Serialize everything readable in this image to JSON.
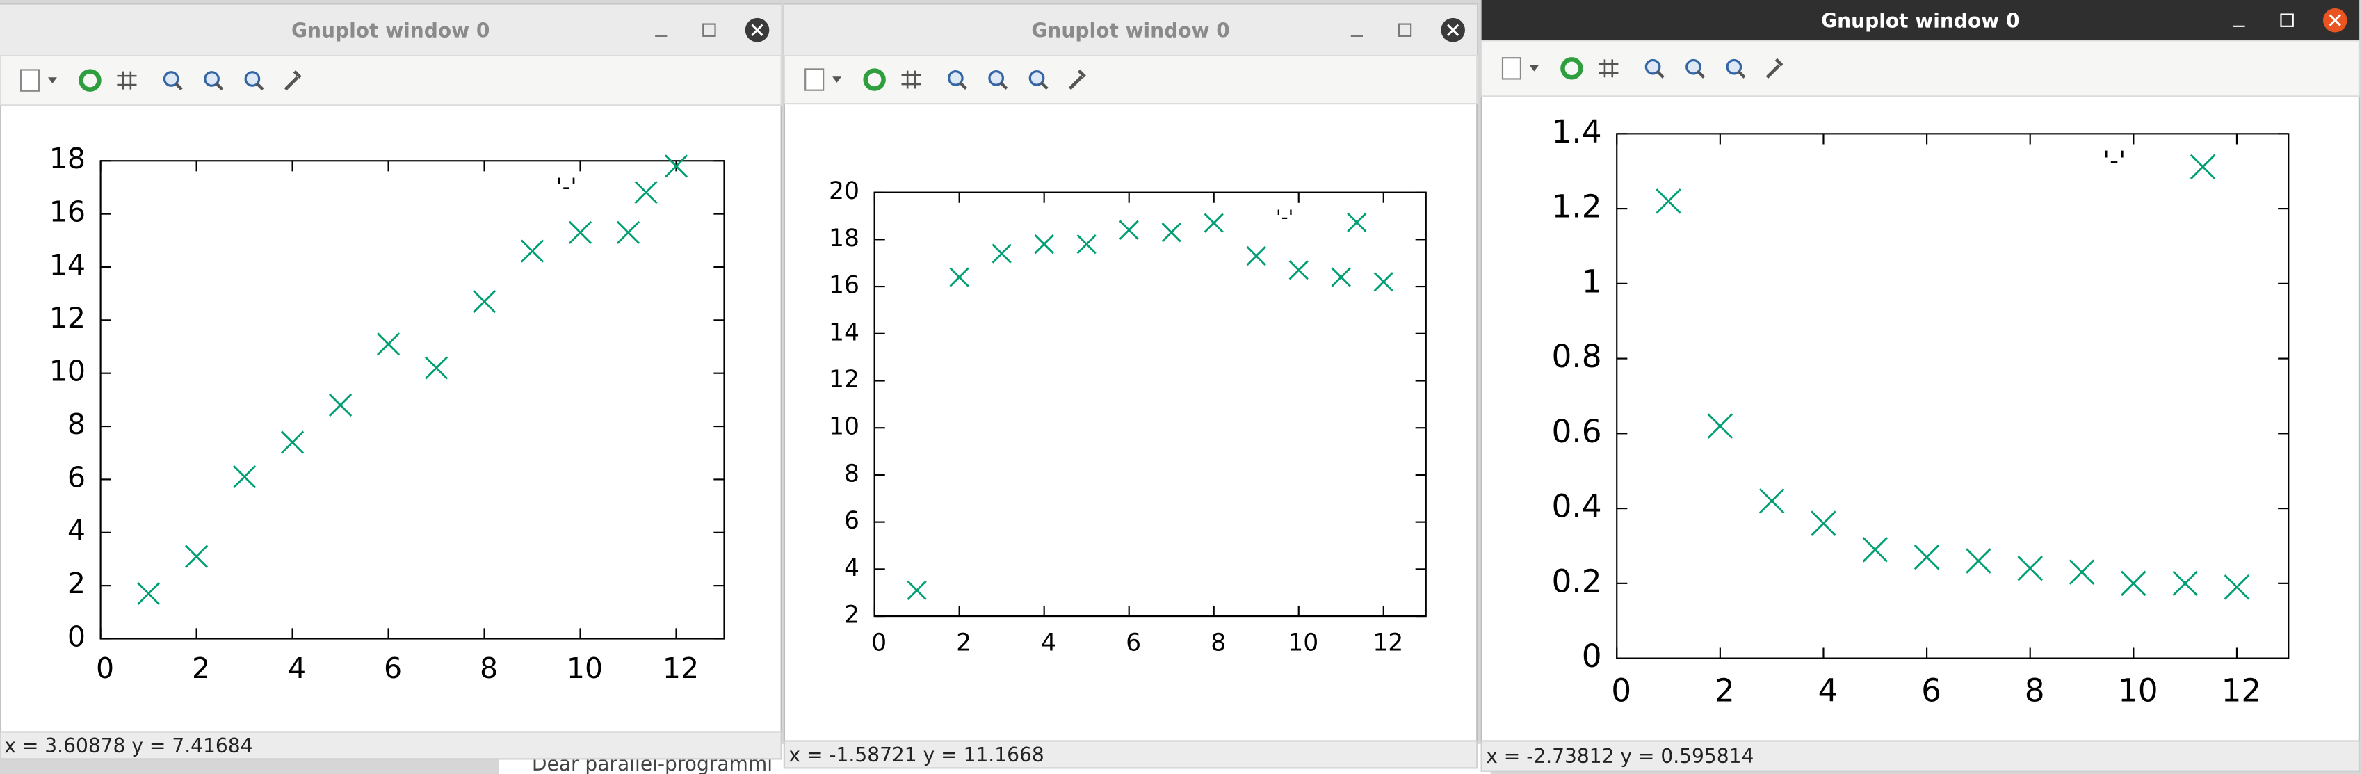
{
  "windows": [
    {
      "title": "Gnuplot window 0",
      "status": "x = 3.60878 y = 7.41684"
    },
    {
      "title": "Gnuplot window 0",
      "status": "x = -1.58721 y = 11.1668"
    },
    {
      "title": "Gnuplot window 0",
      "status": "x = -2.73812 y = 0.595814"
    }
  ],
  "background_text": "Dear parallel-programmi",
  "chart_data": [
    {
      "type": "scatter",
      "x": [
        1,
        2,
        3,
        4,
        5,
        6,
        7,
        8,
        9,
        10,
        11,
        12
      ],
      "series": [
        {
          "name": "'-'",
          "color": "#009e73",
          "values": [
            1.7,
            3.1,
            6.1,
            7.4,
            8.8,
            11.1,
            10.2,
            12.7,
            14.6,
            15.3,
            15.3,
            17.8
          ]
        }
      ],
      "xlim": [
        0,
        13
      ],
      "xticks": [
        0,
        2,
        4,
        6,
        8,
        10,
        12
      ],
      "ylim": [
        0,
        18
      ],
      "yticks": [
        0,
        2,
        4,
        6,
        8,
        10,
        12,
        14,
        16,
        18
      ]
    },
    {
      "type": "scatter",
      "x": [
        1,
        2,
        3,
        4,
        5,
        6,
        7,
        8,
        9,
        10,
        11,
        12
      ],
      "series": [
        {
          "name": "'-'",
          "color": "#009e73",
          "values": [
            3.1,
            16.4,
            17.4,
            17.8,
            17.8,
            18.4,
            18.3,
            18.7,
            17.3,
            16.7,
            16.4,
            16.2
          ]
        }
      ],
      "xlim": [
        0,
        13
      ],
      "xticks": [
        0,
        2,
        4,
        6,
        8,
        10,
        12
      ],
      "ylim": [
        2,
        20
      ],
      "yticks": [
        2,
        4,
        6,
        8,
        10,
        12,
        14,
        16,
        18,
        20
      ]
    },
    {
      "type": "scatter",
      "x": [
        1,
        2,
        3,
        4,
        5,
        6,
        7,
        8,
        9,
        10,
        11,
        12
      ],
      "series": [
        {
          "name": "'-'",
          "color": "#009e73",
          "values": [
            1.22,
            0.62,
            0.42,
            0.36,
            0.29,
            0.27,
            0.26,
            0.24,
            0.23,
            0.2,
            0.2,
            0.19
          ]
        }
      ],
      "xlim": [
        0,
        13
      ],
      "xticks": [
        0,
        2,
        4,
        6,
        8,
        10,
        12
      ],
      "ylim": [
        0,
        1.4
      ],
      "yticks": [
        0,
        0.2,
        0.4,
        0.6,
        0.8,
        1,
        1.2,
        1.4
      ]
    }
  ]
}
